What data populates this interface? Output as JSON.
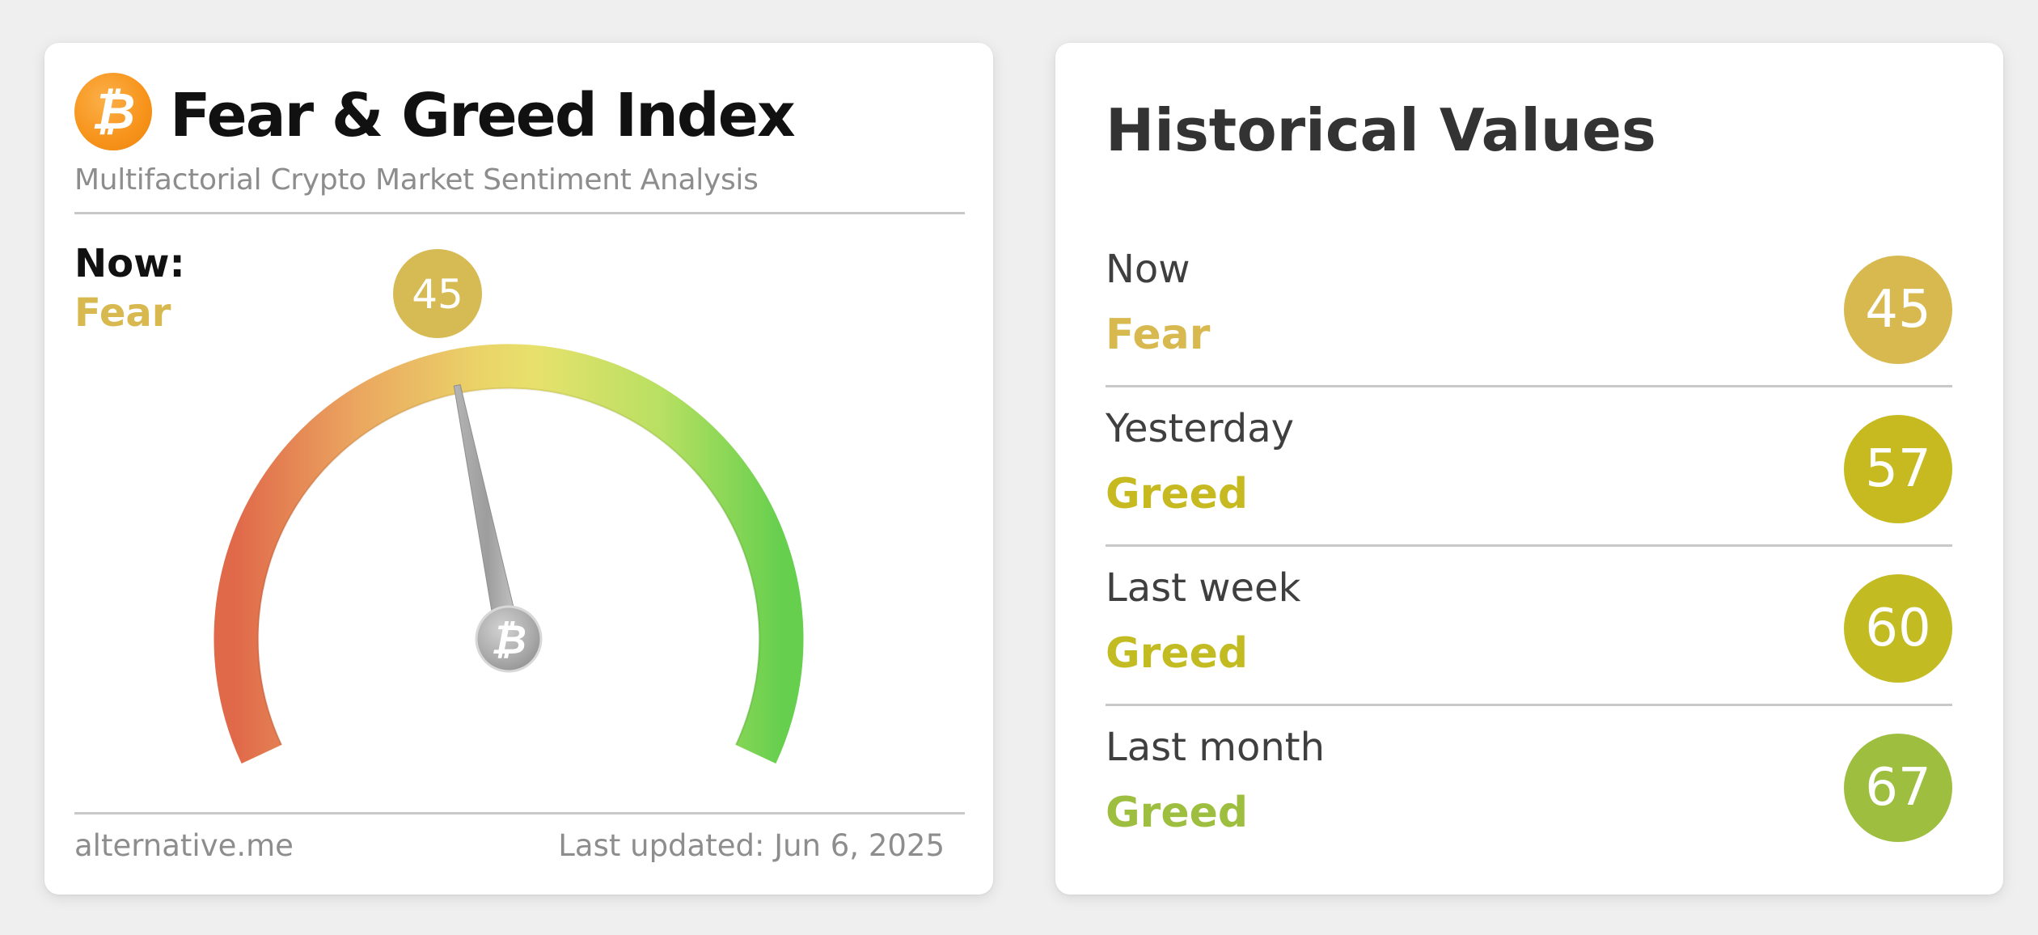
{
  "gauge_card": {
    "logo_icon": "bitcoin-icon",
    "title": "Fear & Greed Index",
    "subtitle": "Multifactorial Crypto Market Sentiment Analysis",
    "now_label": "Now:",
    "now_classification": "Fear",
    "now_value": "45",
    "gauge_value": 45,
    "gauge_min": 0,
    "gauge_max": 100,
    "gauge_colors": {
      "low": "#e0694a",
      "mid": "#e9dc6c",
      "high": "#6cd150"
    },
    "needle_hub_icon": "bitcoin-icon",
    "footer_source": "alternative.me",
    "footer_updated": "Last updated: Jun 6, 2025"
  },
  "history_card": {
    "title": "Historical Values",
    "rows": [
      {
        "label": "Now",
        "classification": "Fear",
        "value": "45",
        "color": "#d8b94f"
      },
      {
        "label": "Yesterday",
        "classification": "Greed",
        "value": "57",
        "color": "#c6ba20"
      },
      {
        "label": "Last week",
        "classification": "Greed",
        "value": "60",
        "color": "#c2bb22"
      },
      {
        "label": "Last month",
        "classification": "Greed",
        "value": "67",
        "color": "#9ebe40"
      }
    ]
  },
  "colors": {
    "fear": "#d8b94f",
    "greed": "#c6ba20",
    "greed_strong": "#9ebe40",
    "badge_now": "#d6ba54"
  }
}
